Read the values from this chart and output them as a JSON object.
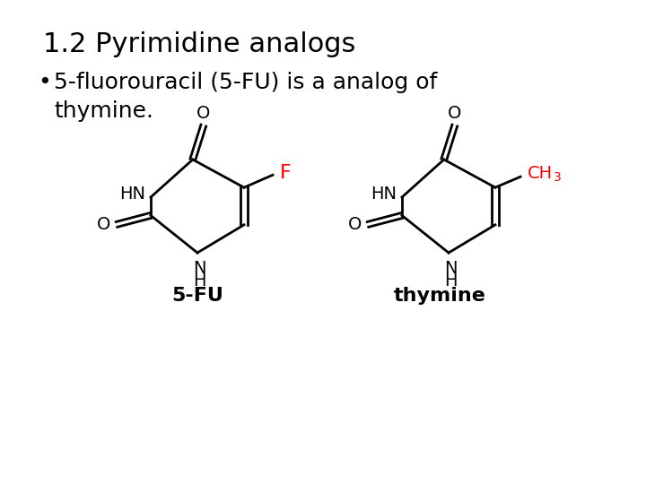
{
  "title": "1.2 Pyrimidine analogs",
  "bullet": "5-fluorouracil (5-FU) is a analog of\nthymine.",
  "label_5fu": "5-FU",
  "label_thymine": "thymine",
  "bg_color": "#ffffff",
  "text_color": "#000000",
  "red_color": "#ff0000",
  "title_fontsize": 22,
  "bullet_fontsize": 18,
  "label_fontsize": 16,
  "structure_fontsize": 14,
  "lw": 2.0
}
